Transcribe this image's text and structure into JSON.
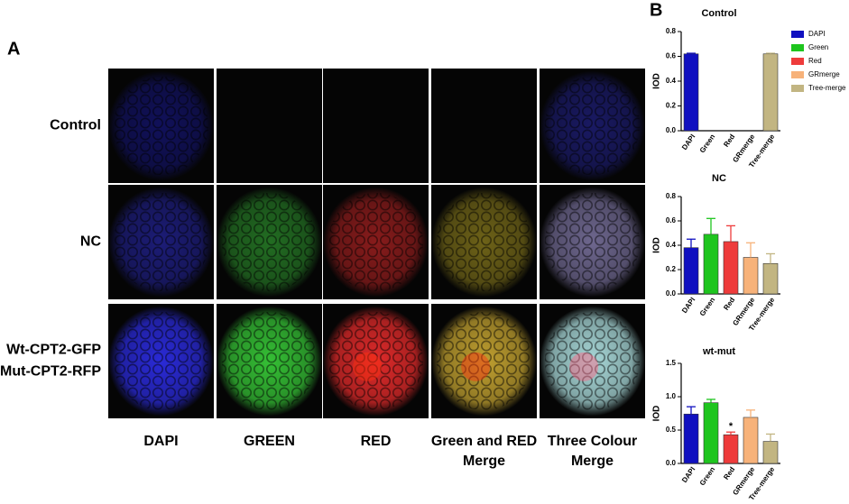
{
  "panel_a": {
    "label": "A",
    "rows": [
      [
        "Control"
      ],
      [
        "NC"
      ],
      [
        "Wt-CPT2-GFP",
        "Mut-CPT2-RFP"
      ]
    ],
    "columns": [
      [
        "DAPI"
      ],
      [
        "GREEN"
      ],
      [
        "RED"
      ],
      [
        "Green and RED",
        "Merge"
      ],
      [
        "Three Colour",
        "Merge"
      ]
    ]
  },
  "panel_b_label": "B",
  "chart_data": [
    {
      "type": "bar",
      "title": "Control",
      "y_label": "IOD",
      "categories": [
        "DAPI",
        "Green",
        "Red",
        "GRmerge",
        "Tree-merge"
      ],
      "colors": [
        "#1010c0",
        "#1ec51e",
        "#ee3b3b",
        "#f7b27a",
        "#c2b582"
      ],
      "values": [
        0.62,
        0,
        0,
        0,
        0.62
      ],
      "errors": [
        0.005,
        0,
        0,
        0,
        0.005
      ],
      "ylim": [
        0,
        0.8
      ],
      "yticks": [
        {
          "value": 0,
          "label": "0.0"
        },
        0.2,
        0.4,
        0.6,
        0.8
      ],
      "legend": {
        "position": "right",
        "entries": [
          "DAPI",
          "Green",
          "Red",
          "GRmerge",
          "Tree-merge"
        ]
      }
    },
    {
      "type": "bar",
      "title": "NC",
      "y_label": "IOD",
      "categories": [
        "DAPI",
        "Green",
        "Red",
        "GRmerge",
        "Tree-merge"
      ],
      "colors": [
        "#1010c0",
        "#1ec51e",
        "#ee3b3b",
        "#f7b27a",
        "#c2b582"
      ],
      "values": [
        0.38,
        0.49,
        0.43,
        0.3,
        0.25
      ],
      "errors": [
        0.07,
        0.13,
        0.13,
        0.12,
        0.08
      ],
      "ylim": [
        0,
        0.8
      ],
      "yticks": [
        {
          "value": 0,
          "label": "0.0"
        },
        0.2,
        0.4,
        0.6,
        0.8
      ]
    },
    {
      "type": "bar",
      "title": "wt-mut",
      "y_label": "IOD",
      "categories": [
        "DAPI",
        "Green",
        "Red",
        "GRmerge",
        "Tree-merge"
      ],
      "colors": [
        "#1010c0",
        "#1ec51e",
        "#ee3b3b",
        "#f7b27a",
        "#c2b582"
      ],
      "values": [
        0.74,
        0.91,
        0.43,
        0.69,
        0.33
      ],
      "errors": [
        0.11,
        0.05,
        0.04,
        0.11,
        0.11
      ],
      "ylim": [
        0,
        1.5
      ],
      "yticks": [
        {
          "value": 0,
          "label": "0.0"
        },
        0.5,
        {
          "value": 1,
          "label": "1.0"
        },
        1.5
      ],
      "annotation": {
        "text": "*",
        "category": "Red"
      }
    }
  ]
}
